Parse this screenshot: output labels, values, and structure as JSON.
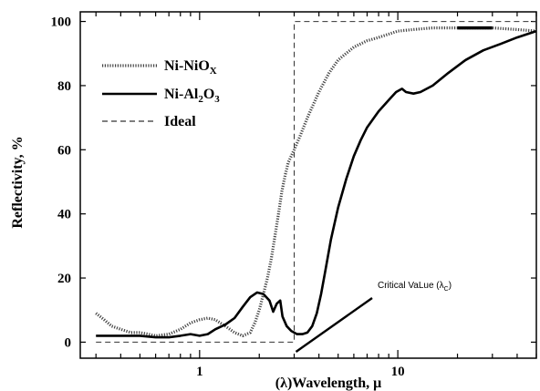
{
  "chart_data": {
    "type": "line",
    "xlabel": "(λ)Wavelength, μ",
    "ylabel": "Reflectivity, %",
    "x_scale": "log",
    "xlim": [
      0.25,
      50
    ],
    "ylim": [
      -5,
      103
    ],
    "x_ticks": [
      {
        "value": 1,
        "label": "1"
      },
      {
        "value": 10,
        "label": "10"
      }
    ],
    "y_ticks": [
      {
        "value": 0,
        "label": "0"
      },
      {
        "value": 20,
        "label": "20"
      },
      {
        "value": 40,
        "label": "40"
      },
      {
        "value": 60,
        "label": "60"
      },
      {
        "value": 80,
        "label": "80"
      },
      {
        "value": 100,
        "label": "100"
      }
    ],
    "legend_position": "top-left",
    "annotation": {
      "text": "Critical VaLue (λ",
      "subscript": "C",
      "suffix": ")",
      "x": 3.0,
      "y": -3
    },
    "series": [
      {
        "name": "Ni-NiO",
        "name_sub": "X",
        "name_tail": "",
        "style": "dotted",
        "points": [
          [
            0.3,
            9
          ],
          [
            0.33,
            7
          ],
          [
            0.36,
            5
          ],
          [
            0.4,
            4
          ],
          [
            0.45,
            3
          ],
          [
            0.5,
            3
          ],
          [
            0.55,
            2.5
          ],
          [
            0.6,
            2
          ],
          [
            0.7,
            2.5
          ],
          [
            0.8,
            4
          ],
          [
            0.9,
            6
          ],
          [
            1.0,
            7
          ],
          [
            1.1,
            7.5
          ],
          [
            1.2,
            7
          ],
          [
            1.35,
            5
          ],
          [
            1.5,
            3
          ],
          [
            1.65,
            2
          ],
          [
            1.8,
            3
          ],
          [
            1.9,
            6
          ],
          [
            2.0,
            10
          ],
          [
            2.1,
            15
          ],
          [
            2.2,
            20
          ],
          [
            2.3,
            26
          ],
          [
            2.4,
            33
          ],
          [
            2.5,
            40
          ],
          [
            2.6,
            47
          ],
          [
            2.7,
            52
          ],
          [
            2.8,
            56
          ],
          [
            3.0,
            60
          ],
          [
            3.2,
            64
          ],
          [
            3.5,
            70
          ],
          [
            4.0,
            78
          ],
          [
            4.5,
            84
          ],
          [
            5.0,
            88
          ],
          [
            6.0,
            92
          ],
          [
            7.0,
            94
          ],
          [
            8.0,
            95
          ],
          [
            10,
            97
          ],
          [
            12,
            97.5
          ],
          [
            15,
            98
          ],
          [
            20,
            98
          ],
          [
            30,
            98
          ],
          [
            40,
            97.5
          ],
          [
            50,
            97
          ]
        ]
      },
      {
        "name": "Ni-Al",
        "name_sub": "2",
        "name_tail": "O",
        "name_sub2": "3",
        "style": "solid",
        "points": [
          [
            0.3,
            2
          ],
          [
            0.4,
            2
          ],
          [
            0.5,
            2
          ],
          [
            0.6,
            1.5
          ],
          [
            0.7,
            1.5
          ],
          [
            0.8,
            2
          ],
          [
            0.9,
            2.5
          ],
          [
            1.0,
            2
          ],
          [
            1.1,
            2.5
          ],
          [
            1.2,
            4
          ],
          [
            1.35,
            5.5
          ],
          [
            1.5,
            7.5
          ],
          [
            1.65,
            11
          ],
          [
            1.8,
            14
          ],
          [
            1.95,
            15.5
          ],
          [
            2.1,
            15
          ],
          [
            2.25,
            13
          ],
          [
            2.35,
            9.5
          ],
          [
            2.45,
            12
          ],
          [
            2.55,
            13
          ],
          [
            2.62,
            8
          ],
          [
            2.75,
            5
          ],
          [
            2.9,
            3.5
          ],
          [
            3.1,
            2.5
          ],
          [
            3.3,
            2.5
          ],
          [
            3.5,
            3
          ],
          [
            3.7,
            5
          ],
          [
            3.9,
            9
          ],
          [
            4.1,
            15
          ],
          [
            4.3,
            22
          ],
          [
            4.6,
            32
          ],
          [
            5.0,
            42
          ],
          [
            5.5,
            51
          ],
          [
            6.0,
            58
          ],
          [
            6.5,
            63
          ],
          [
            7.0,
            67
          ],
          [
            8.0,
            72
          ],
          [
            9.0,
            75.5
          ],
          [
            9.8,
            78
          ],
          [
            10.5,
            79
          ],
          [
            11,
            78
          ],
          [
            12,
            77.5
          ],
          [
            13,
            78
          ],
          [
            15,
            80
          ],
          [
            18,
            84
          ],
          [
            22,
            88
          ],
          [
            27,
            91
          ],
          [
            33,
            93
          ],
          [
            40,
            95
          ],
          [
            50,
            97
          ]
        ]
      },
      {
        "name": "Ideal",
        "name_sub": "",
        "name_tail": "",
        "style": "dashed",
        "points": [
          [
            0.3,
            0
          ],
          [
            3.0,
            0
          ],
          [
            3.0,
            100
          ],
          [
            50,
            100
          ]
        ]
      }
    ],
    "bold_overlay": {
      "series_index": 0,
      "x_range": [
        18,
        33
      ]
    }
  }
}
